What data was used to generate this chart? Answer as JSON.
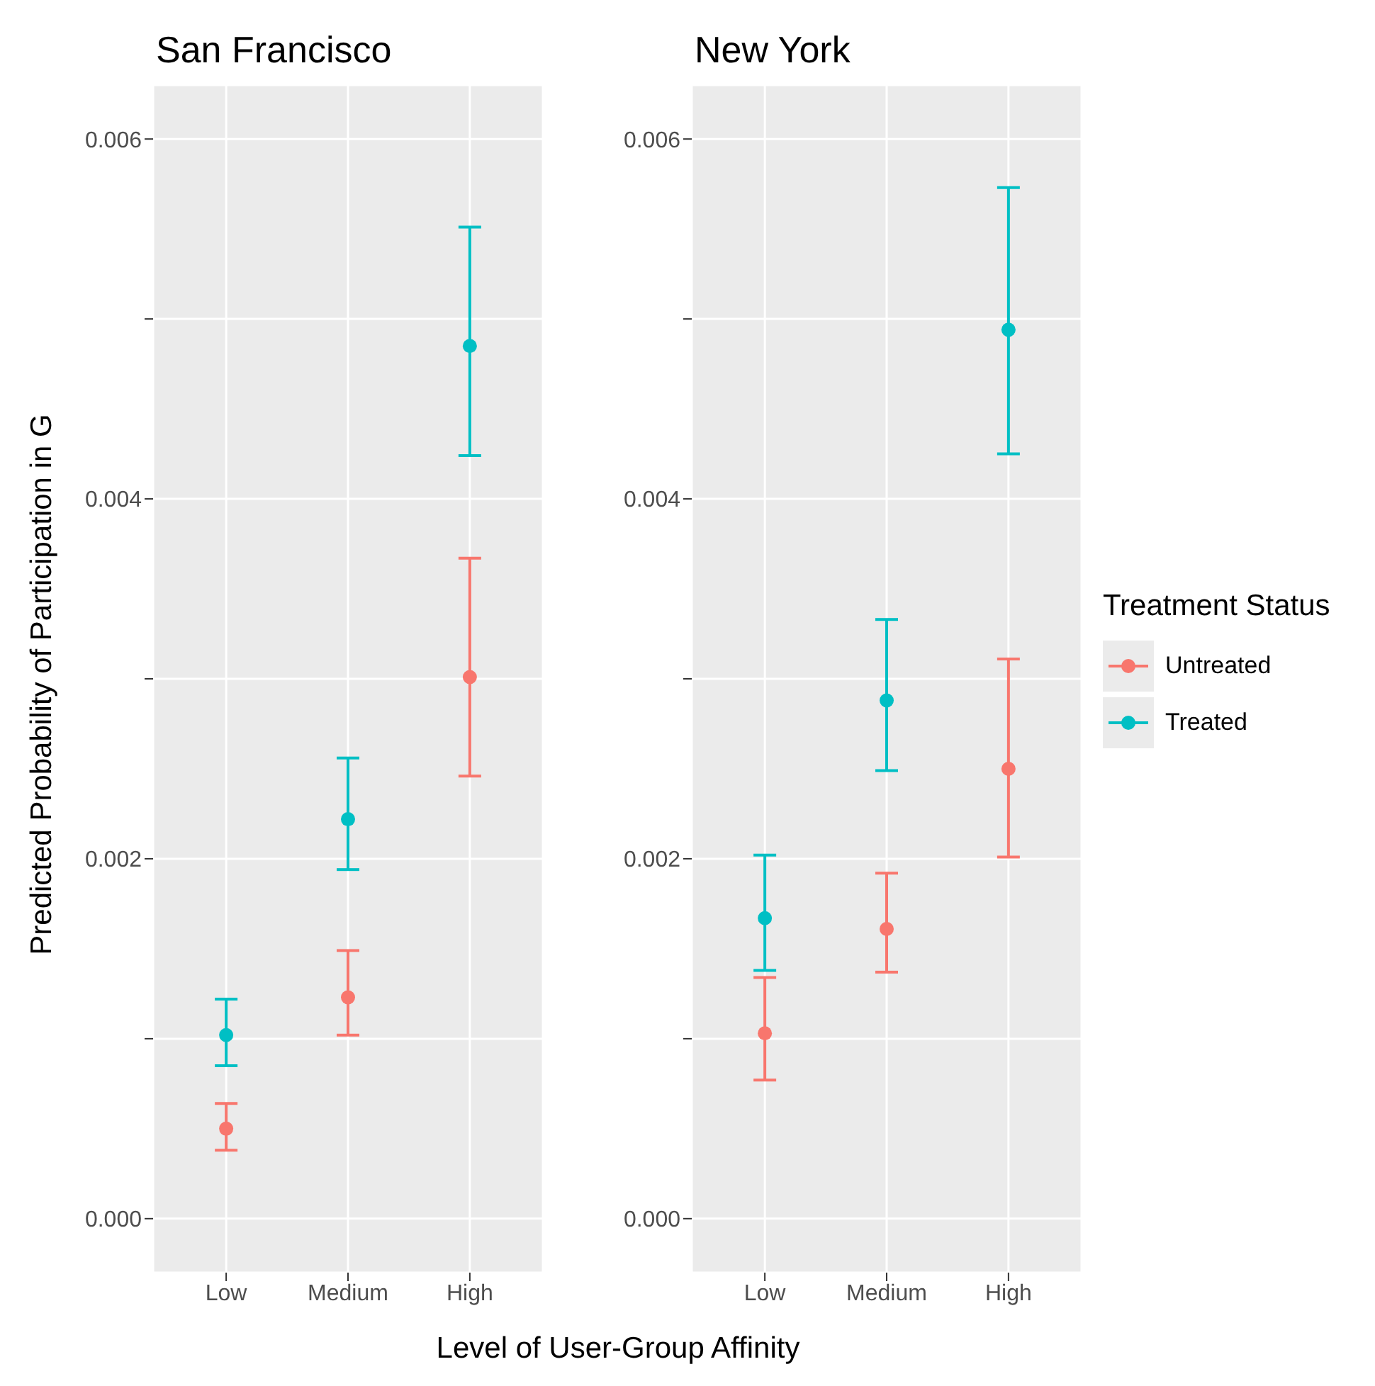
{
  "chart_data": [
    {
      "type": "scatter",
      "title": "San Francisco",
      "ylabel": "Predicted Probability of Participation in G",
      "xlabel": "Level of User-Group Affinity",
      "categories": [
        "Low",
        "Medium",
        "High"
      ],
      "series": [
        {
          "name": "Untreated",
          "color": "#f8766d",
          "values": [
            0.0005,
            0.00123,
            0.00301
          ],
          "errors": [
            [
              0.00038,
              0.00064
            ],
            [
              0.00102,
              0.00149
            ],
            [
              0.00246,
              0.00367
            ]
          ]
        },
        {
          "name": "Treated",
          "color": "#00bfc4",
          "values": [
            0.00102,
            0.00222,
            0.00485
          ],
          "errors": [
            [
              0.00085,
              0.00122
            ],
            [
              0.00194,
              0.00256
            ],
            [
              0.00424,
              0.00551
            ]
          ]
        }
      ],
      "ylim": [
        -0.0003,
        0.0063
      ],
      "yticks": [
        {
          "value": 0,
          "label": "0.000"
        },
        {
          "value": 0.001,
          "label": null
        },
        {
          "value": 0.002,
          "label": "0.002"
        },
        {
          "value": 0.003,
          "label": null
        },
        {
          "value": 0.004,
          "label": "0.004"
        },
        {
          "value": 0.005,
          "label": null
        },
        {
          "value": 0.006,
          "label": "0.006"
        }
      ],
      "grid": true,
      "marker": "circle",
      "legend": "right"
    },
    {
      "type": "scatter",
      "title": "New York",
      "legend_title": "Treatment Status",
      "legend": "right",
      "categories": [
        "Low",
        "Medium",
        "High"
      ],
      "series": [
        {
          "name": "Untreated",
          "color": "#f8766d",
          "values": [
            0.00103,
            0.00161,
            0.0025
          ],
          "errors": [
            [
              0.00077,
              0.00134
            ],
            [
              0.00137,
              0.00192
            ],
            [
              0.00201,
              0.00311
            ]
          ]
        },
        {
          "name": "Treated",
          "color": "#00bfc4",
          "values": [
            0.00167,
            0.00288,
            0.00494
          ],
          "errors": [
            [
              0.00138,
              0.00202
            ],
            [
              0.00249,
              0.00333
            ],
            [
              0.00425,
              0.00573
            ]
          ]
        }
      ],
      "ylim": [
        -0.0003,
        0.0063
      ],
      "yticks": [
        {
          "value": 0,
          "label": "0.000"
        },
        {
          "value": 0.001,
          "label": null
        },
        {
          "value": 0.002,
          "label": "0.002"
        },
        {
          "value": 0.003,
          "label": null
        },
        {
          "value": 0.004,
          "label": "0.004"
        },
        {
          "value": 0.005,
          "label": null
        },
        {
          "value": 0.006,
          "label": "0.006"
        }
      ],
      "grid": true,
      "marker": "circle"
    }
  ]
}
